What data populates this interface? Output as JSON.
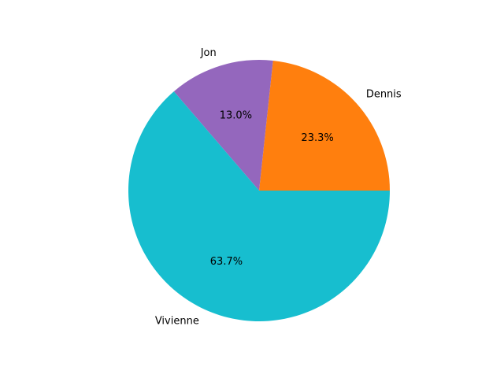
{
  "chart_data": {
    "type": "pie",
    "title": "",
    "start_angle_deg": 0,
    "direction": "counterclockwise",
    "slices": [
      {
        "label": "Dennis",
        "value": 23.3,
        "pct_label": "23.3%",
        "color": "#ff7f0e"
      },
      {
        "label": "Jon",
        "value": 13.0,
        "pct_label": "13.0%",
        "color": "#9467bd"
      },
      {
        "label": "Vivienne",
        "value": 63.7,
        "pct_label": "63.7%",
        "color": "#17becf"
      }
    ]
  }
}
